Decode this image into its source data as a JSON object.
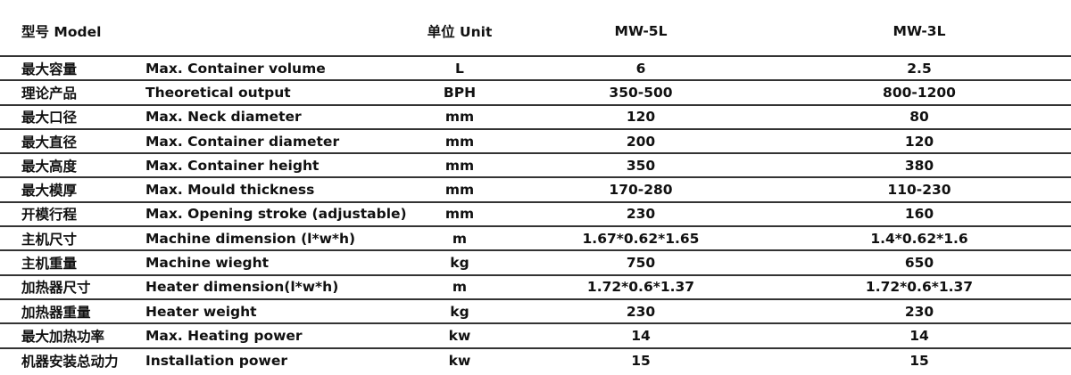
{
  "header": {
    "model": "型号 Model",
    "unit": "单位 Unit",
    "col1": "MW-5L",
    "col2": "MW-3L"
  },
  "rows": [
    {
      "cn": "最大容量",
      "en": "Max. Container volume",
      "unit": "L",
      "v1": "6",
      "v2": "2.5"
    },
    {
      "cn": "理论产品",
      "en": "Theoretical output",
      "unit": "BPH",
      "v1": "350-500",
      "v2": "800-1200"
    },
    {
      "cn": "最大口径",
      "en": "Max. Neck diameter",
      "unit": "mm",
      "v1": "120",
      "v2": "80"
    },
    {
      "cn": "最大直径",
      "en": "Max. Container diameter",
      "unit": "mm",
      "v1": "200",
      "v2": "120"
    },
    {
      "cn": "最大高度",
      "en": "Max. Container height",
      "unit": "mm",
      "v1": "350",
      "v2": "380"
    },
    {
      "cn": "最大模厚",
      "en": "Max. Mould thickness",
      "unit": "mm",
      "v1": "170-280",
      "v2": "110-230"
    },
    {
      "cn": "开模行程",
      "en": "Max. Opening stroke (adjustable)",
      "unit": "mm",
      "v1": "230",
      "v2": "160"
    },
    {
      "cn": "主机尺寸",
      "en": "Machine dimension (l*w*h)",
      "unit": "m",
      "v1": "1.67*0.62*1.65",
      "v2": "1.4*0.62*1.6"
    },
    {
      "cn": "主机重量",
      "en": "Machine wieght",
      "unit": "kg",
      "v1": "750",
      "v2": "650"
    },
    {
      "cn": "加热器尺寸",
      "en": "Heater dimension(l*w*h)",
      "unit": "m",
      "v1": "1.72*0.6*1.37",
      "v2": "1.72*0.6*1.37"
    },
    {
      "cn": "加热器重量",
      "en": "Heater weight",
      "unit": "kg",
      "v1": "230",
      "v2": "230"
    },
    {
      "cn": "最大加热功率",
      "en": "Max. Heating power",
      "unit": "kw",
      "v1": "14",
      "v2": "14"
    },
    {
      "cn": "机器安装总动力",
      "en": "Installation power",
      "unit": "kw",
      "v1": "15",
      "v2": "15"
    }
  ]
}
